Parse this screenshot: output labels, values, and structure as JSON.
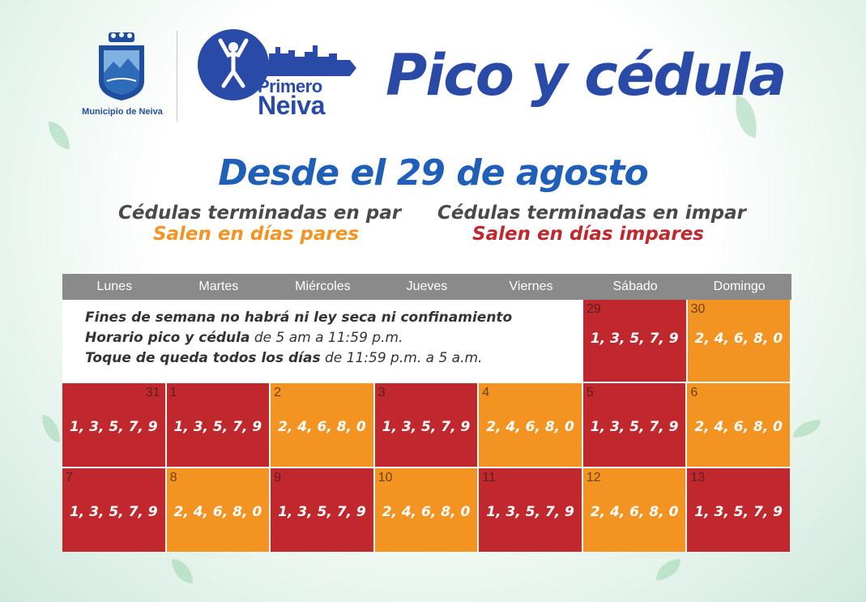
{
  "header": {
    "municipality": "Municipio de Neiva",
    "brand_line1": "Primero",
    "brand_line2": "Neiva",
    "title": "Pico y cédula"
  },
  "date_title": "Desde el 29 de agosto",
  "rules": {
    "par": {
      "line1": "Cédulas terminadas en par",
      "line2": "Salen en días pares",
      "color": "#f39422"
    },
    "impar": {
      "line1": "Cédulas terminadas en impar",
      "line2": "Salen en días impares",
      "color": "#c1282d"
    }
  },
  "calendar": {
    "days": [
      "Lunes",
      "Martes",
      "Miércoles",
      "Jueves",
      "Viernes",
      "Sábado",
      "Domingo"
    ],
    "note": {
      "line1": "Fines de semana no habrá ni ley seca ni confinamiento",
      "line2_bold": "Horario pico y cédula",
      "line2_rest": " de 5 am a 11:59 p.m.",
      "line3_bold": "Toque de queda todos los días",
      "line3_rest": " de 11:59 p.m. a 5 a.m."
    },
    "week1": [
      {
        "day": "29",
        "digits": "1, 3, 5, 7, 9",
        "type": "odd"
      },
      {
        "day": "30",
        "digits": "2, 4, 6, 8, 0",
        "type": "even"
      }
    ],
    "week2": [
      {
        "day": "31",
        "digits": "1, 3, 5, 7, 9",
        "type": "odd"
      },
      {
        "day": "1",
        "digits": "1, 3, 5, 7, 9",
        "type": "odd"
      },
      {
        "day": "2",
        "digits": "2, 4, 6, 8, 0",
        "type": "even"
      },
      {
        "day": "3",
        "digits": "1, 3, 5, 7, 9",
        "type": "odd"
      },
      {
        "day": "4",
        "digits": "2, 4, 6, 8, 0",
        "type": "even"
      },
      {
        "day": "5",
        "digits": "1, 3, 5, 7, 9",
        "type": "odd"
      },
      {
        "day": "6",
        "digits": "2, 4, 6, 8, 0",
        "type": "even"
      }
    ],
    "week3": [
      {
        "day": "7",
        "digits": "1, 3, 5, 7, 9",
        "type": "odd"
      },
      {
        "day": "8",
        "digits": "2, 4, 6, 8, 0",
        "type": "even"
      },
      {
        "day": "9",
        "digits": "1, 3, 5, 7, 9",
        "type": "odd"
      },
      {
        "day": "10",
        "digits": "2, 4, 6, 8, 0",
        "type": "even"
      },
      {
        "day": "11",
        "digits": "1, 3, 5, 7, 9",
        "type": "odd"
      },
      {
        "day": "12",
        "digits": "2, 4, 6, 8, 0",
        "type": "even"
      },
      {
        "day": "13",
        "digits": "1, 3, 5, 7, 9",
        "type": "odd"
      }
    ]
  },
  "colors": {
    "brand_blue": "#2a4aa8",
    "odd_red": "#c1282d",
    "even_orange": "#f39422",
    "header_gray": "#8a8a8a"
  }
}
